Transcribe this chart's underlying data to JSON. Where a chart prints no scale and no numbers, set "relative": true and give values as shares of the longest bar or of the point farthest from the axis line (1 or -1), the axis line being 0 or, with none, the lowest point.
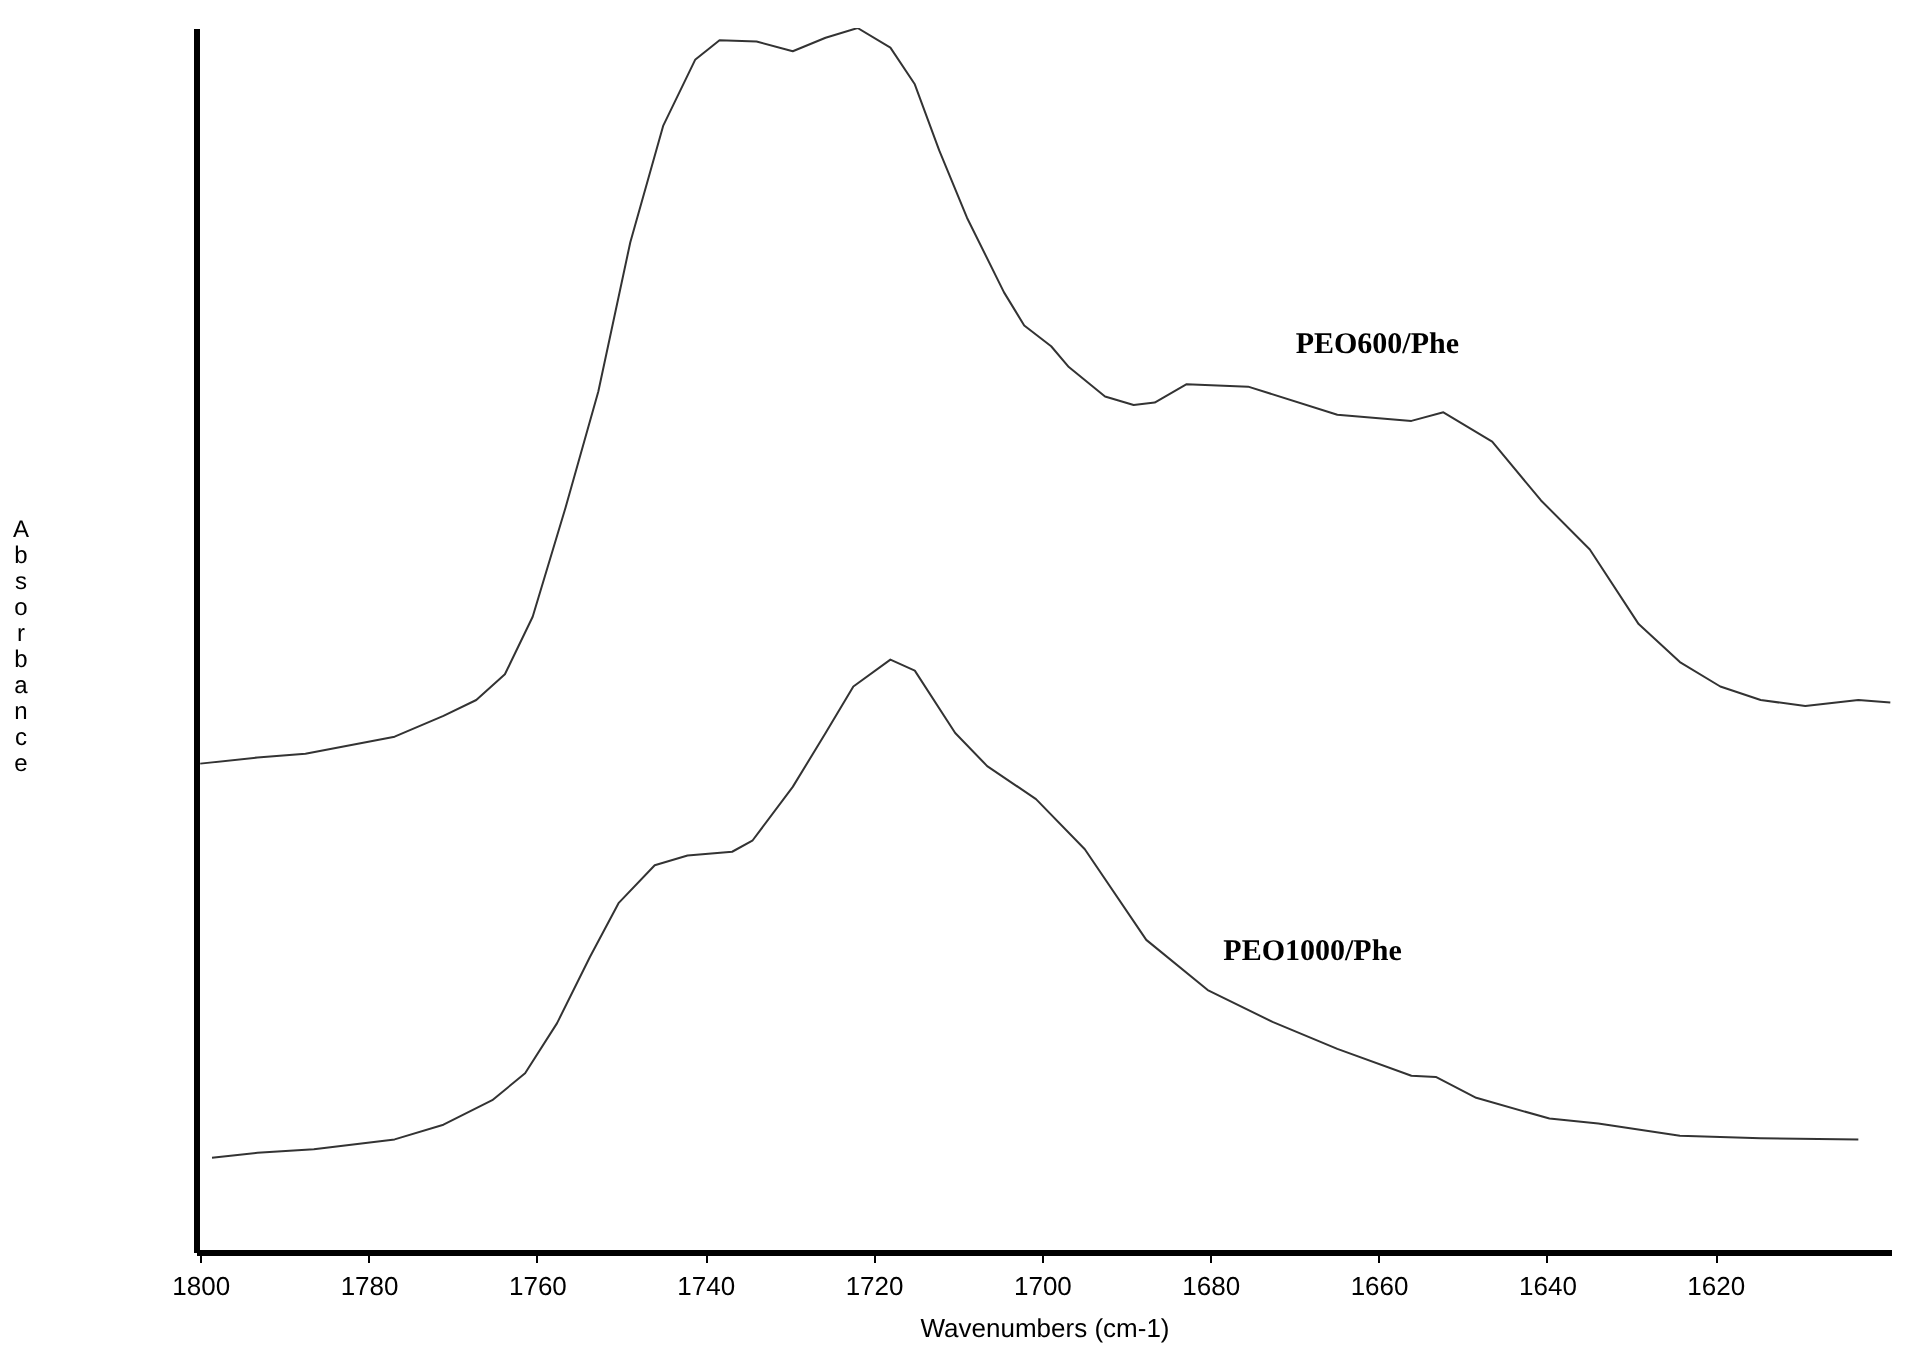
{
  "chart_data": {
    "type": "line",
    "relative": true,
    "xlabel": "Wavenumbers (cm-1)",
    "ylabel": "Absorbance",
    "xlim": [
      1800.5,
      1599
    ],
    "xticks": [
      1800,
      1780,
      1760,
      1740,
      1720,
      1700,
      1680,
      1660,
      1640,
      1620
    ],
    "series": [
      {
        "name": "PEO600/Phe",
        "color": "#333333",
        "x": [
          1800,
          1793.2,
          1787.5,
          1776.9,
          1771.1,
          1767.2,
          1763.8,
          1760.5,
          1756.6,
          1752.7,
          1748.9,
          1745.0,
          1741.2,
          1738.3,
          1733.9,
          1729.6,
          1725.7,
          1721.9,
          1718.0,
          1715.1,
          1712.2,
          1708.9,
          1704.5,
          1702.1,
          1698.9,
          1696.8,
          1692.5,
          1689.1,
          1686.6,
          1682.8,
          1675.5,
          1664.9,
          1656.1,
          1652.3,
          1646.5,
          1640.7,
          1634.9,
          1629.1,
          1624.2,
          1619.4,
          1614.6,
          1609.3,
          1603.0,
          1599.2
        ],
        "values": [
          0.399,
          0.404,
          0.407,
          0.421,
          0.438,
          0.451,
          0.472,
          0.519,
          0.608,
          0.703,
          0.825,
          0.92,
          0.974,
          0.99,
          0.989,
          0.981,
          0.992,
          1.0,
          0.984,
          0.954,
          0.9,
          0.845,
          0.784,
          0.757,
          0.74,
          0.723,
          0.699,
          0.692,
          0.694,
          0.709,
          0.707,
          0.684,
          0.679,
          0.686,
          0.662,
          0.614,
          0.574,
          0.513,
          0.482,
          0.462,
          0.451,
          0.446,
          0.451,
          0.449
        ]
      },
      {
        "name": "PEO1000/Phe",
        "color": "#333333",
        "x": [
          1798.6,
          1793.2,
          1786.5,
          1776.9,
          1771.1,
          1765.3,
          1761.4,
          1757.6,
          1753.7,
          1750.3,
          1746.0,
          1742.1,
          1736.8,
          1734.4,
          1729.6,
          1725.7,
          1722.4,
          1718.0,
          1715.1,
          1710.3,
          1706.5,
          1700.7,
          1694.9,
          1687.6,
          1680.3,
          1672.6,
          1664.9,
          1656.1,
          1653.2,
          1648.4,
          1639.7,
          1633.9,
          1624.2,
          1614.6,
          1603.0
        ],
        "values": [
          0.077,
          0.081,
          0.084,
          0.092,
          0.104,
          0.124,
          0.146,
          0.187,
          0.241,
          0.285,
          0.316,
          0.324,
          0.327,
          0.336,
          0.38,
          0.424,
          0.462,
          0.484,
          0.475,
          0.424,
          0.397,
          0.37,
          0.329,
          0.255,
          0.214,
          0.188,
          0.166,
          0.144,
          0.143,
          0.126,
          0.109,
          0.105,
          0.095,
          0.093,
          0.092
        ]
      }
    ]
  }
}
